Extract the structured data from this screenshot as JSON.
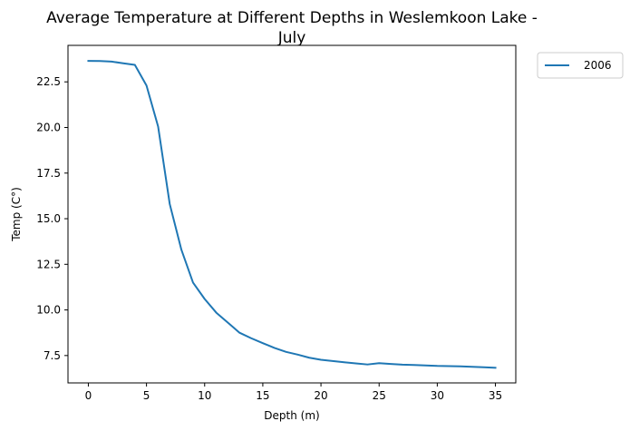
{
  "chart_data": {
    "type": "line",
    "title_lines": [
      "Average Temperature at Different Depths in Weslemkoon Lake -",
      "July"
    ],
    "xlabel": "Depth (m)",
    "ylabel": "Temp (C°)",
    "xlim": [
      -1.75,
      36.75
    ],
    "ylim": [
      6.0,
      24.5
    ],
    "xticks": [
      0,
      5,
      10,
      15,
      20,
      25,
      30,
      35
    ],
    "xtick_labels": [
      "0",
      "5",
      "10",
      "15",
      "20",
      "25",
      "30",
      "35"
    ],
    "yticks": [
      7.5,
      10.0,
      12.5,
      15.0,
      17.5,
      20.0,
      22.5
    ],
    "ytick_labels": [
      "7.5",
      "10.0",
      "12.5",
      "15.0",
      "17.5",
      "20.0",
      "22.5"
    ],
    "grid": false,
    "legend_placement": "outside-top-right",
    "series": [
      {
        "name": "2006",
        "color": "#1f77b4",
        "x": [
          0,
          1,
          2,
          3,
          4,
          5,
          6,
          7,
          8,
          9,
          10,
          11,
          12,
          13,
          14,
          15,
          16,
          17,
          18,
          19,
          20,
          21,
          22,
          23,
          24,
          25,
          26,
          27,
          28,
          29,
          30,
          31,
          32,
          33,
          34,
          35
        ],
        "y": [
          23.65,
          23.64,
          23.61,
          23.52,
          23.43,
          22.3,
          20.05,
          15.8,
          13.3,
          11.5,
          10.6,
          9.85,
          9.3,
          8.75,
          8.45,
          8.18,
          7.92,
          7.7,
          7.55,
          7.38,
          7.27,
          7.2,
          7.13,
          7.07,
          7.01,
          7.08,
          7.04,
          7.0,
          6.98,
          6.96,
          6.93,
          6.92,
          6.91,
          6.88,
          6.86,
          6.83
        ]
      }
    ]
  }
}
